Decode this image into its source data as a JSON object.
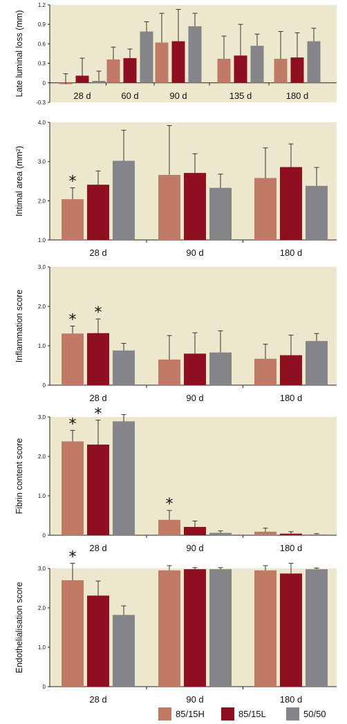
{
  "colors": {
    "background": "#ece7cd",
    "series": [
      "#c07a65",
      "#8e1020",
      "#858589"
    ]
  },
  "legend": {
    "placement": "bottom-right",
    "items": [
      "85/15H",
      "85/15L",
      "50/50"
    ]
  },
  "chart_data": [
    {
      "type": "bar",
      "ylabel": "Late luminal loss (mm)",
      "ylim": [
        -0.3,
        1.2
      ],
      "yticks": [
        "-0.3",
        "0",
        "0.3",
        "0.6",
        "0.9",
        "1.2"
      ],
      "grid": false,
      "categories": [
        "28 d",
        "60 d",
        "90 d",
        "135 d",
        "180 d"
      ],
      "series": [
        {
          "name": "85/15H",
          "values": [
            -0.02,
            0.36,
            0.62,
            0.37,
            0.37
          ],
          "errors": [
            0.16,
            0.19,
            0.45,
            0.35,
            0.42
          ]
        },
        {
          "name": "85/15L",
          "values": [
            0.11,
            0.38,
            0.64,
            0.42,
            0.39
          ],
          "errors": [
            0.27,
            0.14,
            0.49,
            0.48,
            0.38
          ]
        },
        {
          "name": "50/50",
          "values": [
            0.03,
            0.79,
            0.87,
            0.57,
            0.64
          ],
          "errors": [
            0.15,
            0.15,
            0.2,
            0.18,
            0.2
          ]
        }
      ],
      "annotations": []
    },
    {
      "type": "bar",
      "ylabel": "Intimal area (mm²)",
      "ylim": [
        1.0,
        4.0
      ],
      "yticks": [
        "1.0",
        "2.0",
        "3.0",
        "4.0"
      ],
      "grid": false,
      "categories": [
        "28 d",
        "90 d",
        "180 d"
      ],
      "series": [
        {
          "name": "85/15H",
          "values": [
            2.04,
            2.66,
            2.58
          ],
          "errors": [
            0.29,
            1.26,
            0.77
          ]
        },
        {
          "name": "85/15L",
          "values": [
            2.41,
            2.71,
            2.86
          ],
          "errors": [
            0.35,
            0.49,
            0.59
          ]
        },
        {
          "name": "50/50",
          "values": [
            3.02,
            2.33,
            2.38
          ],
          "errors": [
            0.78,
            0.35,
            0.47
          ]
        }
      ],
      "annotations": [
        {
          "text": "*",
          "category": "28 d",
          "series": "85/15H"
        }
      ]
    },
    {
      "type": "bar",
      "ylabel": "Inflammation score",
      "ylim": [
        0,
        3.0
      ],
      "yticks": [
        "0",
        "1.0",
        "2.0",
        "3.0"
      ],
      "grid": false,
      "categories": [
        "28 d",
        "90 d",
        "180 d"
      ],
      "series": [
        {
          "name": "85/15H",
          "values": [
            1.31,
            0.65,
            0.67
          ],
          "errors": [
            0.19,
            0.61,
            0.37
          ]
        },
        {
          "name": "85/15L",
          "values": [
            1.32,
            0.8,
            0.76
          ],
          "errors": [
            0.36,
            0.53,
            0.51
          ]
        },
        {
          "name": "50/50",
          "values": [
            0.88,
            0.83,
            1.12
          ],
          "errors": [
            0.18,
            0.55,
            0.19
          ]
        }
      ],
      "annotations": [
        {
          "text": "*",
          "category": "28 d",
          "series": "85/15H"
        },
        {
          "text": "*",
          "category": "28 d",
          "series": "85/15L"
        }
      ]
    },
    {
      "type": "bar",
      "ylabel": "Fibrin content score",
      "ylim": [
        0,
        3.0
      ],
      "yticks": [
        "0",
        "1.0",
        "2.0",
        "3.0"
      ],
      "grid": false,
      "categories": [
        "28 d",
        "90 d",
        "180 d"
      ],
      "series": [
        {
          "name": "85/15H",
          "values": [
            2.38,
            0.39,
            0.09
          ],
          "errors": [
            0.28,
            0.24,
            0.09
          ]
        },
        {
          "name": "85/15L",
          "values": [
            2.3,
            0.21,
            0.04
          ],
          "errors": [
            0.62,
            0.15,
            0.05
          ]
        },
        {
          "name": "50/50",
          "values": [
            2.89,
            0.06,
            0.02
          ],
          "errors": [
            0.17,
            0.05,
            0.02
          ]
        }
      ],
      "annotations": [
        {
          "text": "*",
          "category": "28 d",
          "series": "85/15H"
        },
        {
          "text": "*",
          "category": "28 d",
          "series": "85/15L"
        },
        {
          "text": "*",
          "category": "90 d",
          "series": "85/15H"
        }
      ]
    },
    {
      "type": "bar",
      "ylabel": "Endothelialisation score",
      "ylim": [
        0,
        3.0
      ],
      "yticks": [
        "0",
        "1.0",
        "2.0",
        "3.0"
      ],
      "grid": false,
      "categories": [
        "28 d",
        "90 d",
        "180 d"
      ],
      "series": [
        {
          "name": "85/15H",
          "values": [
            2.7,
            2.95,
            2.95
          ],
          "errors": [
            0.43,
            0.12,
            0.12
          ]
        },
        {
          "name": "85/15L",
          "values": [
            2.31,
            2.98,
            2.87
          ],
          "errors": [
            0.37,
            0.04,
            0.26
          ]
        },
        {
          "name": "50/50",
          "values": [
            1.82,
            2.98,
            2.98
          ],
          "errors": [
            0.23,
            0.04,
            0.03
          ]
        }
      ],
      "annotations": [
        {
          "text": "*",
          "category": "28 d",
          "series": "85/15H"
        }
      ]
    }
  ]
}
